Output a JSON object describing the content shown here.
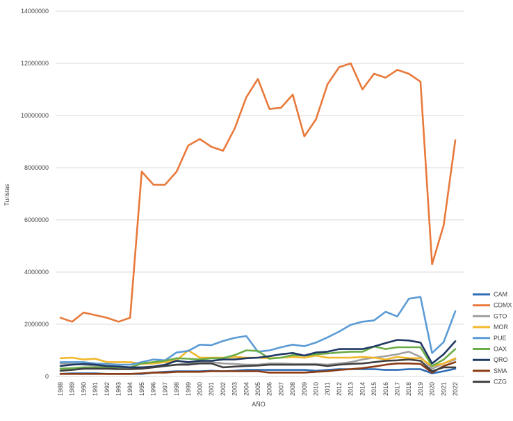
{
  "chart_data": {
    "type": "line",
    "title": "",
    "xlabel": "AÑO",
    "ylabel": "Turistas",
    "ylim": [
      0,
      14000000
    ],
    "yticks": [
      "0",
      "2000000",
      "4000000",
      "6000000",
      "8000000",
      "10000000",
      "12000000",
      "14000000"
    ],
    "grid": true,
    "legend_position": "right",
    "x": [
      "1988",
      "1989",
      "1990",
      "1991",
      "1992",
      "1993",
      "1994",
      "1995",
      "1996",
      "1997",
      "1998",
      "1999",
      "2000",
      "2001",
      "2002",
      "2003",
      "2004",
      "2005",
      "2006",
      "2007",
      "2008",
      "2009",
      "2010",
      "2011",
      "2012",
      "2013",
      "2014",
      "2015",
      "2016",
      "2017",
      "2018",
      "2019",
      "2020",
      "2021",
      "2022"
    ],
    "series": [
      {
        "name": "CAM",
        "color": "#2e6cb5",
        "values": [
          100000,
          120000,
          120000,
          120000,
          100000,
          100000,
          100000,
          100000,
          150000,
          180000,
          200000,
          200000,
          200000,
          220000,
          200000,
          220000,
          250000,
          250000,
          250000,
          250000,
          250000,
          250000,
          220000,
          250000,
          280000,
          280000,
          280000,
          280000,
          250000,
          250000,
          280000,
          280000,
          120000,
          200000,
          300000
        ]
      },
      {
        "name": "CDMX",
        "color": "#e8793a",
        "values": [
          2250000,
          2100000,
          2450000,
          2350000,
          2250000,
          2100000,
          2250000,
          7850000,
          7350000,
          7350000,
          7850000,
          8850000,
          9100000,
          8800000,
          8650000,
          9500000,
          10700000,
          11400000,
          10250000,
          10300000,
          10800000,
          9200000,
          9850000,
          11200000,
          11850000,
          12000000,
          11000000,
          11600000,
          11450000,
          11750000,
          11600000,
          11300000,
          4300000,
          5800000,
          9050000
        ]
      },
      {
        "name": "GTO",
        "color": "#a0a0a0",
        "values": [
          500000,
          480000,
          450000,
          420000,
          400000,
          380000,
          350000,
          350000,
          350000,
          400000,
          450000,
          500000,
          550000,
          550000,
          500000,
          480000,
          450000,
          450000,
          500000,
          500000,
          480000,
          480000,
          480000,
          450000,
          500000,
          550000,
          650000,
          720000,
          780000,
          850000,
          950000,
          750000,
          300000,
          500000,
          650000
        ]
      },
      {
        "name": "MOR",
        "color": "#f2b82a",
        "values": [
          700000,
          720000,
          650000,
          680000,
          550000,
          550000,
          550000,
          480000,
          500000,
          550000,
          620000,
          1000000,
          720000,
          720000,
          720000,
          750000,
          720000,
          720000,
          700000,
          720000,
          750000,
          720000,
          800000,
          720000,
          720000,
          720000,
          750000,
          720000,
          650000,
          750000,
          700000,
          700000,
          400000,
          500000,
          700000
        ]
      },
      {
        "name": "PUE",
        "color": "#5b9bd5",
        "values": [
          550000,
          550000,
          550000,
          500000,
          480000,
          450000,
          450000,
          550000,
          650000,
          620000,
          920000,
          980000,
          1220000,
          1200000,
          1360000,
          1480000,
          1550000,
          950000,
          1000000,
          1120000,
          1220000,
          1160000,
          1300000,
          1500000,
          1720000,
          1980000,
          2100000,
          2150000,
          2480000,
          2300000,
          2980000,
          3050000,
          900000,
          1320000,
          2500000
        ]
      },
      {
        "name": "OAX",
        "color": "#6aac47",
        "values": [
          300000,
          320000,
          350000,
          350000,
          350000,
          350000,
          350000,
          500000,
          550000,
          600000,
          700000,
          680000,
          650000,
          700000,
          700000,
          820000,
          1000000,
          980000,
          680000,
          720000,
          820000,
          800000,
          850000,
          880000,
          920000,
          950000,
          950000,
          1150000,
          1050000,
          1120000,
          1120000,
          1120000,
          400000,
          650000,
          1050000
        ]
      },
      {
        "name": "QRO",
        "color": "#1f3864",
        "values": [
          400000,
          450000,
          480000,
          450000,
          400000,
          380000,
          350000,
          350000,
          380000,
          450000,
          600000,
          550000,
          600000,
          600000,
          650000,
          650000,
          700000,
          720000,
          780000,
          850000,
          900000,
          800000,
          920000,
          950000,
          1050000,
          1050000,
          1050000,
          1150000,
          1280000,
          1400000,
          1380000,
          1300000,
          500000,
          850000,
          1350000
        ]
      },
      {
        "name": "SMA",
        "color": "#8b3a12",
        "values": [
          100000,
          100000,
          100000,
          100000,
          100000,
          100000,
          100000,
          120000,
          150000,
          150000,
          180000,
          180000,
          180000,
          200000,
          200000,
          200000,
          200000,
          200000,
          150000,
          150000,
          150000,
          150000,
          180000,
          200000,
          250000,
          280000,
          320000,
          380000,
          450000,
          500000,
          500000,
          480000,
          150000,
          400000,
          550000
        ]
      },
      {
        "name": "CZG",
        "color": "#404040",
        "values": [
          220000,
          250000,
          300000,
          300000,
          300000,
          280000,
          280000,
          300000,
          350000,
          400000,
          450000,
          450000,
          500000,
          500000,
          350000,
          380000,
          400000,
          420000,
          450000,
          450000,
          450000,
          450000,
          450000,
          400000,
          450000,
          480000,
          500000,
          550000,
          600000,
          620000,
          650000,
          600000,
          200000,
          350000,
          350000
        ]
      }
    ]
  }
}
